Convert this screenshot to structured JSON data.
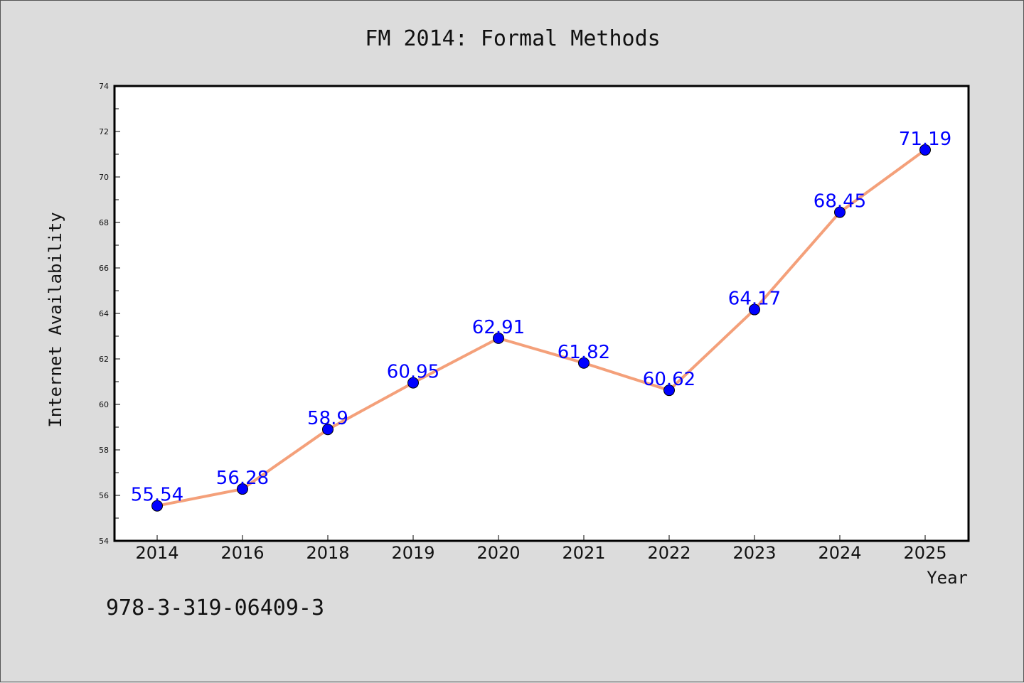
{
  "chart_data": {
    "type": "line",
    "title": "FM 2014: Formal Methods",
    "xlabel": "Year",
    "ylabel": "Internet Availability",
    "categories": [
      "2014",
      "2016",
      "2018",
      "2019",
      "2020",
      "2021",
      "2022",
      "2023",
      "2024",
      "2025"
    ],
    "series": [
      {
        "values": [
          55.54,
          56.28,
          58.9,
          60.95,
          62.91,
          61.82,
          60.62,
          64.17,
          68.45,
          71.19
        ],
        "line_color": "#f4a07a",
        "marker_color": "#0000ff"
      }
    ],
    "data_labels": [
      "55.54",
      "56.28",
      "58.9",
      "60.95",
      "62.91",
      "61.82",
      "60.62",
      "64.17",
      "68.45",
      "71.19"
    ],
    "ylim": [
      54,
      74
    ],
    "yticks": [
      "54",
      "56",
      "58",
      "60",
      "62",
      "64",
      "66",
      "68",
      "70",
      "72",
      "74"
    ],
    "grid": false,
    "legend": "none"
  },
  "footer": {
    "isbn": "978-3-319-06409-3"
  },
  "colors": {
    "background": "#dcdcdc",
    "plot_background": "#ffffff",
    "line": "#f4a07a",
    "marker": "#0000ff",
    "data_label": "#0000ff"
  }
}
